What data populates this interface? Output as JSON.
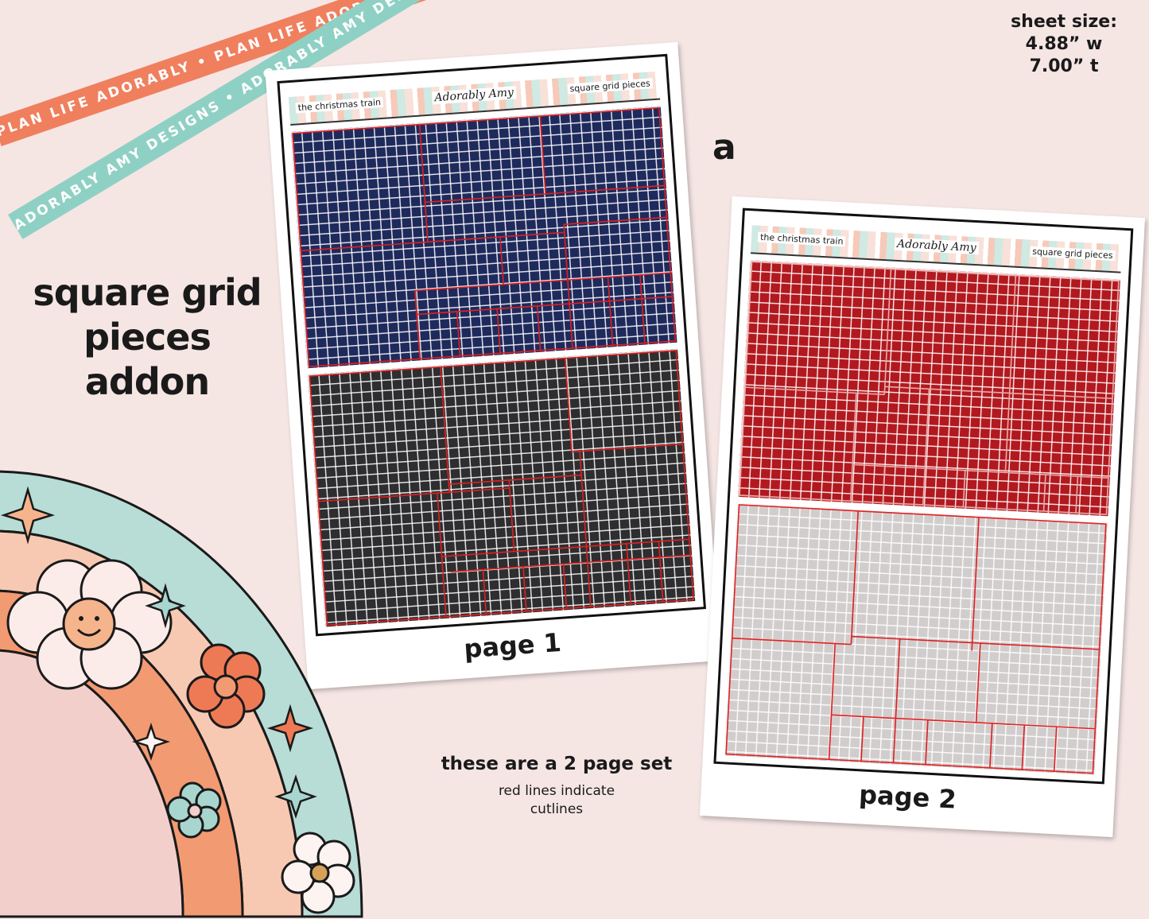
{
  "ribbons": {
    "orange_text": "PLAN LIFE ADORABLY • PLAN LIFE ADORABLY • PLAN LIFE ADORABLY •",
    "mint_text": "ADORABLY AMY DESIGNS • ADORABLY AMY DESIGNS • ADORABLY AMY DESIGNS •"
  },
  "sheet_size": {
    "label": "sheet size:",
    "width": "4.88” w",
    "height": "7.00” t"
  },
  "title": {
    "line1": "square grid",
    "line2": "pieces",
    "line3": "addon"
  },
  "variant_letter": "a",
  "sheets": [
    {
      "header_left": "the christmas train",
      "brand": "Adorably Amy",
      "header_right": "square grid pieces",
      "page_label": "page 1",
      "top_color": "#1f2a5c",
      "bottom_color": "#2e2e30"
    },
    {
      "header_left": "the christmas train",
      "brand": "Adorably Amy",
      "header_right": "square grid pieces",
      "page_label": "page 2",
      "top_color": "#b2191f",
      "bottom_color": "#d2cdcd"
    }
  ],
  "note": {
    "main": "these are a 2 page set",
    "sub1": "red lines indicate",
    "sub2": "cutlines"
  },
  "colors": {
    "background": "#f5e6e4",
    "cutline": "#e02020"
  }
}
